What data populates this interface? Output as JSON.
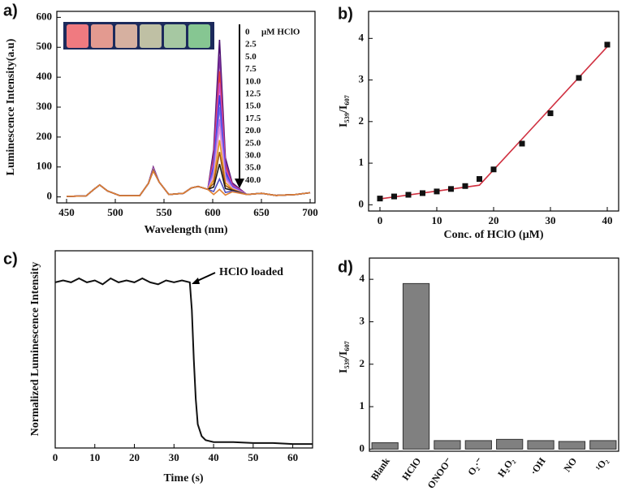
{
  "chart_data": [
    {
      "type": "line",
      "panel_label": "a)",
      "xlabel": "Wavelength (nm)",
      "ylabel": "Luminescence Intensity(a.u)",
      "xlim": [
        440,
        705
      ],
      "xticks": [
        450,
        500,
        550,
        600,
        650,
        700
      ],
      "ylim": [
        -20,
        620
      ],
      "yticks": [
        0,
        100,
        200,
        300,
        400,
        500,
        600
      ],
      "legend_unit": "μM HClO",
      "x": [
        450,
        470,
        478,
        484,
        492,
        505,
        525,
        534,
        539,
        545,
        555,
        570,
        578,
        585,
        595,
        601,
        607,
        613,
        620,
        635,
        650,
        665,
        685,
        700
      ],
      "series": [
        {
          "name": "0",
          "color": "#4b0f6e",
          "values": [
            2,
            3,
            25,
            40,
            20,
            4,
            4,
            45,
            100,
            50,
            8,
            12,
            30,
            35,
            25,
            158,
            525,
            131,
            47,
            8,
            12,
            5,
            8,
            14
          ]
        },
        {
          "name": "2.5",
          "color": "#7b2f9e",
          "values": [
            2,
            3,
            25,
            40,
            20,
            4,
            4,
            45,
            97,
            50,
            8,
            12,
            30,
            35,
            25,
            141,
            470,
            118,
            43,
            8,
            12,
            5,
            8,
            14
          ]
        },
        {
          "name": "5.0",
          "color": "#e03a3a",
          "values": [
            2,
            3,
            25,
            40,
            20,
            4,
            4,
            45,
            96,
            50,
            8,
            12,
            30,
            35,
            25,
            126,
            420,
            105,
            40,
            8,
            12,
            5,
            8,
            14
          ]
        },
        {
          "name": "7.5",
          "color": "#d04ad0",
          "values": [
            2,
            3,
            25,
            40,
            20,
            4,
            4,
            45,
            95,
            50,
            8,
            12,
            30,
            35,
            25,
            114,
            380,
            95,
            38,
            8,
            12,
            5,
            8,
            14
          ]
        },
        {
          "name": "10.0",
          "color": "#3b3bdd",
          "values": [
            2,
            3,
            25,
            40,
            20,
            4,
            4,
            45,
            94,
            50,
            8,
            12,
            30,
            35,
            25,
            102,
            340,
            85,
            35,
            8,
            12,
            5,
            8,
            14
          ]
        },
        {
          "name": "12.5",
          "color": "#6a6ae8",
          "values": [
            2,
            3,
            25,
            40,
            20,
            4,
            4,
            45,
            93,
            50,
            8,
            12,
            30,
            35,
            25,
            90,
            300,
            75,
            33,
            8,
            12,
            5,
            8,
            14
          ]
        },
        {
          "name": "15.0",
          "color": "#c070e0",
          "values": [
            2,
            3,
            25,
            40,
            20,
            4,
            4,
            45,
            92,
            50,
            8,
            12,
            30,
            35,
            25,
            78,
            260,
            65,
            31,
            8,
            12,
            5,
            8,
            14
          ]
        },
        {
          "name": "17.5",
          "color": "#e0a0e0",
          "values": [
            2,
            3,
            25,
            40,
            20,
            4,
            4,
            45,
            91,
            50,
            8,
            12,
            30,
            35,
            25,
            69,
            230,
            58,
            29,
            8,
            12,
            5,
            8,
            14
          ]
        },
        {
          "name": "20.0",
          "color": "#e8a020",
          "values": [
            2,
            3,
            25,
            40,
            20,
            4,
            4,
            45,
            90,
            50,
            8,
            12,
            30,
            35,
            25,
            57,
            190,
            48,
            26,
            8,
            12,
            5,
            8,
            14
          ]
        },
        {
          "name": "25.0",
          "color": "#a05010",
          "values": [
            2,
            3,
            25,
            40,
            20,
            4,
            4,
            45,
            89,
            50,
            8,
            12,
            30,
            35,
            25,
            45,
            150,
            38,
            24,
            8,
            12,
            5,
            8,
            14
          ]
        },
        {
          "name": "30.0",
          "color": "#1a1a1a",
          "values": [
            2,
            3,
            25,
            40,
            20,
            4,
            4,
            45,
            88,
            50,
            8,
            12,
            30,
            35,
            25,
            33,
            110,
            28,
            22,
            8,
            12,
            5,
            8,
            14
          ]
        },
        {
          "name": "35.0",
          "color": "#5050c0",
          "values": [
            2,
            3,
            25,
            40,
            20,
            4,
            4,
            45,
            87,
            50,
            8,
            12,
            30,
            35,
            25,
            18,
            60,
            15,
            19,
            8,
            12,
            5,
            8,
            14
          ]
        },
        {
          "name": "40.0",
          "color": "#e08030",
          "values": [
            2,
            3,
            25,
            40,
            20,
            4,
            4,
            45,
            86,
            50,
            8,
            12,
            30,
            35,
            25,
            8,
            25,
            6,
            17,
            8,
            12,
            5,
            8,
            14
          ]
        }
      ]
    },
    {
      "type": "scatter",
      "panel_label": "b)",
      "xlabel": "Conc. of HClO (μM)",
      "ylabel": "I₅₃₉/I₆₀₇",
      "xlim": [
        -2,
        42
      ],
      "xticks": [
        0,
        10,
        20,
        30,
        40
      ],
      "ylim": [
        -0.15,
        4.65
      ],
      "yticks": [
        0,
        1,
        2,
        3,
        4
      ],
      "color": "#111111",
      "x": [
        0,
        2.5,
        5,
        7.5,
        10,
        12.5,
        15,
        17.5,
        20,
        25,
        30,
        35,
        40
      ],
      "values": [
        0.15,
        0.2,
        0.24,
        0.28,
        0.32,
        0.38,
        0.45,
        0.62,
        0.85,
        1.47,
        2.2,
        3.05,
        3.85
      ],
      "fit": {
        "color": "#d03040",
        "x": [
          0,
          17.5,
          40
        ],
        "values": [
          0.14,
          0.47,
          3.8
        ]
      }
    },
    {
      "type": "line",
      "panel_label": "c)",
      "xlabel": "Time (s)",
      "ylabel": "Normalized Luminescence Intensity",
      "annotation": "HClO loaded",
      "color": "#111111",
      "xlim": [
        0,
        65
      ],
      "xticks": [
        0,
        10,
        20,
        30,
        40,
        50,
        60
      ],
      "ylim": [
        0,
        1
      ],
      "x": [
        0,
        2,
        4,
        6,
        8,
        10,
        12,
        14,
        16,
        18,
        20,
        22,
        24,
        26,
        28,
        30,
        32,
        34,
        34.5,
        35,
        35.5,
        36,
        37,
        38,
        40,
        45,
        50,
        55,
        60,
        65
      ],
      "values": [
        0.84,
        0.85,
        0.84,
        0.86,
        0.84,
        0.85,
        0.83,
        0.86,
        0.84,
        0.85,
        0.84,
        0.86,
        0.84,
        0.83,
        0.85,
        0.84,
        0.85,
        0.84,
        0.7,
        0.45,
        0.25,
        0.12,
        0.06,
        0.04,
        0.03,
        0.03,
        0.025,
        0.025,
        0.02,
        0.02
      ]
    },
    {
      "type": "bar",
      "panel_label": "d)",
      "ylabel": "I₅₃₉/I₆₀₇",
      "color": "#808080",
      "ylim": [
        -0.05,
        4.5
      ],
      "yticks": [
        0,
        1,
        2,
        3,
        4
      ],
      "categories": [
        "Blank",
        "HClO",
        "ONOO⁻",
        "O₂·⁻",
        "H₂O₂",
        "·OH",
        "NO",
        "¹O₂"
      ],
      "values": [
        0.15,
        3.9,
        0.2,
        0.2,
        0.23,
        0.2,
        0.18,
        0.2
      ]
    }
  ]
}
